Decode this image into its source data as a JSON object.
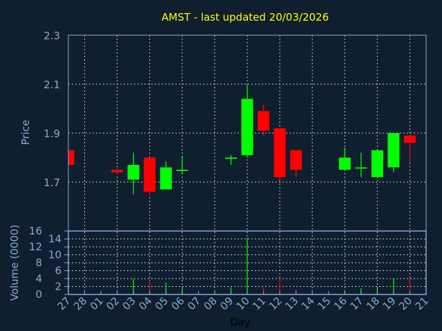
{
  "chart_data": {
    "type": "candlestick",
    "title": "AMST - last updated 20/03/2026",
    "xlabel": "Day",
    "ylabel": "Price",
    "volume_label": "Volume (0000)",
    "x_tick_labels": [
      "27",
      "28",
      "01",
      "02",
      "03",
      "04",
      "05",
      "06",
      "07",
      "08",
      "09",
      "10",
      "11",
      "12",
      "13",
      "14",
      "15",
      "16",
      "17",
      "18",
      "19",
      "20",
      "21"
    ],
    "ylim": [
      1.5,
      2.3
    ],
    "y_ticks": [
      "1.7",
      "1.9",
      "2.1",
      "2.3"
    ],
    "volume_ylim": [
      0,
      16
    ],
    "volume_ticks": [
      "0",
      "2",
      "4",
      "6",
      "8",
      "10",
      "12",
      "14",
      "16"
    ],
    "grid": true,
    "colors": {
      "up": "#00ff00",
      "down": "#ff0000",
      "background": "#0f1f30",
      "axis": "#8aa9d4",
      "title": "#ffff00"
    },
    "candles": [
      {
        "day": "27",
        "open": 1.83,
        "high": 1.83,
        "low": 1.77,
        "close": 1.77,
        "volume": 0
      },
      {
        "day": "02",
        "open": 1.75,
        "high": 1.756,
        "low": 1.731,
        "close": 1.74,
        "volume": 0.7
      },
      {
        "day": "03",
        "open": 1.71,
        "high": 1.82,
        "low": 1.65,
        "close": 1.77,
        "volume": 3.9
      },
      {
        "day": "04",
        "open": 1.8,
        "high": 1.8,
        "low": 1.645,
        "close": 1.66,
        "volume": 3.5
      },
      {
        "day": "05",
        "open": 1.67,
        "high": 1.785,
        "low": 1.67,
        "close": 1.76,
        "volume": 3.0
      },
      {
        "day": "06",
        "open": 1.745,
        "high": 1.805,
        "low": 1.735,
        "close": 1.75,
        "volume": 1.8
      },
      {
        "day": "09",
        "open": 1.795,
        "high": 1.81,
        "low": 1.77,
        "close": 1.8,
        "volume": 1.8
      },
      {
        "day": "10",
        "open": 1.81,
        "high": 2.1,
        "low": 1.8,
        "close": 2.04,
        "volume": 14.3
      },
      {
        "day": "11",
        "open": 1.99,
        "high": 2.015,
        "low": 1.89,
        "close": 1.91,
        "volume": 1.7
      },
      {
        "day": "12",
        "open": 1.92,
        "high": 1.92,
        "low": 1.71,
        "close": 1.72,
        "volume": 4.2
      },
      {
        "day": "13",
        "open": 1.83,
        "high": 1.83,
        "low": 1.72,
        "close": 1.75,
        "volume": 1.2
      },
      {
        "day": "16",
        "open": 1.75,
        "high": 1.84,
        "low": 1.75,
        "close": 1.8,
        "volume": 1.0
      },
      {
        "day": "17",
        "open": 1.755,
        "high": 1.82,
        "low": 1.72,
        "close": 1.76,
        "volume": 1.6
      },
      {
        "day": "18",
        "open": 1.72,
        "high": 1.83,
        "low": 1.72,
        "close": 1.83,
        "volume": 1.7
      },
      {
        "day": "19",
        "open": 1.76,
        "high": 1.9,
        "low": 1.74,
        "close": 1.9,
        "volume": 4.1
      },
      {
        "day": "20",
        "open": 1.89,
        "high": 1.89,
        "low": 1.78,
        "close": 1.86,
        "volume": 4.1
      }
    ]
  }
}
